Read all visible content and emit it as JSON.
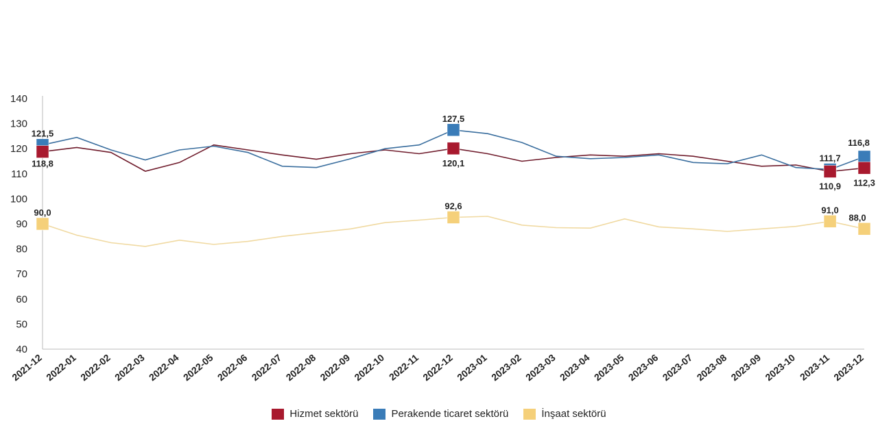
{
  "chart_data": {
    "type": "line",
    "title": "",
    "xlabel": "",
    "ylabel": "",
    "ylim": [
      40,
      140
    ],
    "yticks": [
      "140",
      "130",
      "120",
      "110",
      "100",
      "90",
      "80",
      "70",
      "60",
      "50",
      "40"
    ],
    "categories": [
      "2021-12",
      "2022-01",
      "2022-02",
      "2022-03",
      "2022-04",
      "2022-05",
      "2022-06",
      "2022-07",
      "2022-08",
      "2022-09",
      "2022-10",
      "2022-11",
      "2022-12",
      "2023-01",
      "2023-02",
      "2023-03",
      "2023-04",
      "2023-05",
      "2023-06",
      "2023-07",
      "2023-08",
      "2023-09",
      "2023-10",
      "2023-11",
      "2023-12"
    ],
    "grid": false,
    "legend_position": "bottom",
    "series": [
      {
        "name": "Hizmet sektörü",
        "color": "#a8192e",
        "values": [
          118.8,
          120.5,
          118.5,
          111.0,
          114.5,
          121.5,
          119.5,
          117.5,
          115.8,
          118.0,
          119.5,
          118.0,
          120.1,
          118.0,
          115.0,
          116.5,
          117.5,
          117.0,
          118.0,
          117.0,
          115.0,
          113.0,
          113.5,
          110.9,
          112.3
        ],
        "labels": {
          "0": "118,8",
          "12": "120,1",
          "23": "110,9",
          "24": "112,3"
        }
      },
      {
        "name": "Perakende ticaret sektörü",
        "color": "#3a7cb8",
        "values": [
          121.5,
          124.5,
          119.5,
          115.5,
          119.5,
          121.0,
          118.5,
          113.0,
          112.5,
          116.0,
          120.0,
          121.5,
          127.5,
          126.0,
          122.5,
          117.0,
          116.0,
          116.5,
          117.5,
          114.5,
          114.0,
          117.5,
          112.5,
          111.7,
          116.8
        ],
        "labels": {
          "0": "121,5",
          "12": "127,5",
          "23": "111,7",
          "24": "116,8"
        }
      },
      {
        "name": "İnşaat sektörü",
        "color": "#f5d07a",
        "values": [
          90.0,
          85.5,
          82.5,
          81.0,
          83.5,
          81.8,
          83.0,
          85.0,
          86.5,
          88.0,
          90.5,
          91.5,
          92.6,
          93.0,
          89.5,
          88.5,
          88.3,
          92.0,
          88.8,
          88.0,
          87.0,
          88.0,
          89.0,
          91.0,
          88.0
        ],
        "labels": {
          "0": "90,0",
          "12": "92,6",
          "23": "91,0",
          "24": "88,0"
        }
      }
    ]
  }
}
